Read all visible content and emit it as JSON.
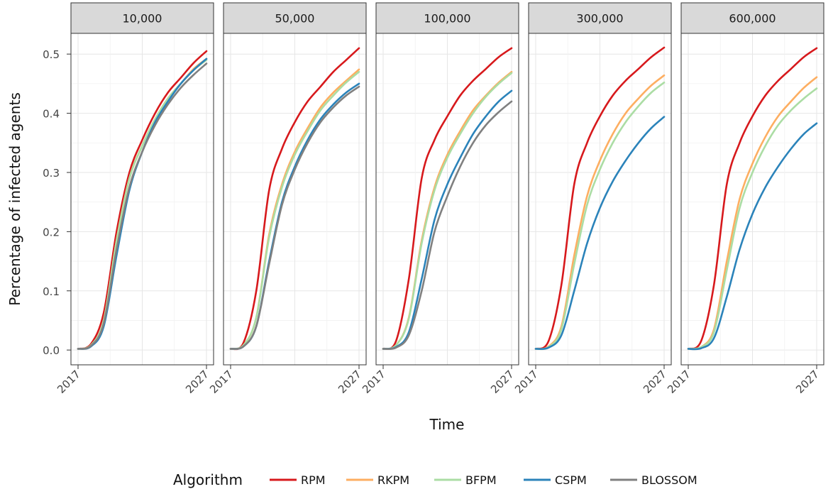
{
  "chart_data": {
    "type": "line",
    "xlabel": "Time",
    "ylabel": "Percentage of infected agents",
    "x_tick_labels": [
      "2017",
      "2027"
    ],
    "xlim": [
      2017,
      2027
    ],
    "y_ticks": [
      0.0,
      0.1,
      0.2,
      0.3,
      0.4,
      0.5
    ],
    "y_tick_labels": [
      "0.0",
      "0.1",
      "0.2",
      "0.3",
      "0.4",
      "0.5"
    ],
    "ylim": [
      -0.025,
      0.535
    ],
    "grid": true,
    "legend": {
      "title": "Algorithm",
      "position": "bottom",
      "entries": [
        {
          "name": "RPM",
          "color": "#d7191c"
        },
        {
          "name": "RKPM",
          "color": "#fdae61"
        },
        {
          "name": "BFPM",
          "color": "#abdda4"
        },
        {
          "name": "CSPM",
          "color": "#2b83ba"
        },
        {
          "name": "BLOSSOM",
          "color": "#808080"
        }
      ]
    },
    "panels": [
      {
        "strip": "10,000",
        "series": [
          {
            "name": "RPM",
            "color": "#d7191c",
            "x": [
              2017,
              2018,
              2019,
              2020,
              2021,
              2022,
              2023,
              2024,
              2025,
              2026,
              2027
            ],
            "y": [
              0.002,
              0.01,
              0.063,
              0.2,
              0.3,
              0.355,
              0.4,
              0.435,
              0.46,
              0.485,
              0.505
            ]
          },
          {
            "name": "RKPM",
            "color": "#fdae61",
            "x": [
              2017,
              2018,
              2019,
              2020,
              2021,
              2022,
              2023,
              2024,
              2025,
              2026,
              2027
            ],
            "y": [
              0.002,
              0.008,
              0.05,
              0.185,
              0.29,
              0.345,
              0.39,
              0.425,
              0.45,
              0.475,
              0.492
            ]
          },
          {
            "name": "BFPM",
            "color": "#abdda4",
            "x": [
              2017,
              2018,
              2019,
              2020,
              2021,
              2022,
              2023,
              2024,
              2025,
              2026,
              2027
            ],
            "y": [
              0.002,
              0.008,
              0.05,
              0.185,
              0.29,
              0.345,
              0.39,
              0.425,
              0.45,
              0.473,
              0.49
            ]
          },
          {
            "name": "CSPM",
            "color": "#2b83ba",
            "x": [
              2017,
              2018,
              2019,
              2020,
              2021,
              2022,
              2023,
              2024,
              2025,
              2026,
              2027
            ],
            "y": [
              0.002,
              0.006,
              0.04,
              0.16,
              0.27,
              0.335,
              0.385,
              0.42,
              0.45,
              0.473,
              0.492
            ]
          },
          {
            "name": "BLOSSOM",
            "color": "#808080",
            "x": [
              2017,
              2018,
              2019,
              2020,
              2021,
              2022,
              2023,
              2024,
              2025,
              2026,
              2027
            ],
            "y": [
              0.002,
              0.007,
              0.045,
              0.17,
              0.275,
              0.335,
              0.38,
              0.415,
              0.443,
              0.465,
              0.484
            ]
          }
        ]
      },
      {
        "strip": "50,000",
        "series": [
          {
            "name": "RPM",
            "color": "#d7191c",
            "x": [
              2017,
              2018,
              2019,
              2020,
              2021,
              2022,
              2023,
              2024,
              2025,
              2026,
              2027
            ],
            "y": [
              0.002,
              0.012,
              0.1,
              0.27,
              0.34,
              0.385,
              0.42,
              0.445,
              0.47,
              0.49,
              0.51
            ]
          },
          {
            "name": "RKPM",
            "color": "#fdae61",
            "x": [
              2017,
              2018,
              2019,
              2020,
              2021,
              2022,
              2023,
              2024,
              2025,
              2026,
              2027
            ],
            "y": [
              0.002,
              0.008,
              0.055,
              0.195,
              0.28,
              0.335,
              0.375,
              0.41,
              0.435,
              0.455,
              0.474
            ]
          },
          {
            "name": "BFPM",
            "color": "#abdda4",
            "x": [
              2017,
              2018,
              2019,
              2020,
              2021,
              2022,
              2023,
              2024,
              2025,
              2026,
              2027
            ],
            "y": [
              0.002,
              0.008,
              0.055,
              0.19,
              0.275,
              0.33,
              0.37,
              0.405,
              0.43,
              0.452,
              0.47
            ]
          },
          {
            "name": "CSPM",
            "color": "#2b83ba",
            "x": [
              2017,
              2018,
              2019,
              2020,
              2021,
              2022,
              2023,
              2024,
              2025,
              2026,
              2027
            ],
            "y": [
              0.002,
              0.006,
              0.04,
              0.15,
              0.25,
              0.31,
              0.355,
              0.39,
              0.415,
              0.435,
              0.45
            ]
          },
          {
            "name": "BLOSSOM",
            "color": "#808080",
            "x": [
              2017,
              2018,
              2019,
              2020,
              2021,
              2022,
              2023,
              2024,
              2025,
              2026,
              2027
            ],
            "y": [
              0.002,
              0.006,
              0.04,
              0.145,
              0.245,
              0.305,
              0.35,
              0.385,
              0.41,
              0.43,
              0.445
            ]
          }
        ]
      },
      {
        "strip": "100,000",
        "series": [
          {
            "name": "RPM",
            "color": "#d7191c",
            "x": [
              2017,
              2018,
              2019,
              2020,
              2021,
              2022,
              2023,
              2024,
              2025,
              2026,
              2027
            ],
            "y": [
              0.002,
              0.015,
              0.12,
              0.29,
              0.355,
              0.395,
              0.43,
              0.455,
              0.475,
              0.495,
              0.51
            ]
          },
          {
            "name": "RKPM",
            "color": "#fdae61",
            "x": [
              2017,
              2018,
              2019,
              2020,
              2021,
              2022,
              2023,
              2024,
              2025,
              2026,
              2027
            ],
            "y": [
              0.002,
              0.008,
              0.055,
              0.185,
              0.275,
              0.33,
              0.37,
              0.405,
              0.43,
              0.452,
              0.47
            ]
          },
          {
            "name": "BFPM",
            "color": "#abdda4",
            "x": [
              2017,
              2018,
              2019,
              2020,
              2021,
              2022,
              2023,
              2024,
              2025,
              2026,
              2027
            ],
            "y": [
              0.002,
              0.008,
              0.053,
              0.18,
              0.27,
              0.325,
              0.365,
              0.4,
              0.428,
              0.45,
              0.468
            ]
          },
          {
            "name": "CSPM",
            "color": "#2b83ba",
            "x": [
              2017,
              2018,
              2019,
              2020,
              2021,
              2022,
              2023,
              2024,
              2025,
              2026,
              2027
            ],
            "y": [
              0.002,
              0.005,
              0.03,
              0.12,
              0.22,
              0.28,
              0.325,
              0.365,
              0.395,
              0.42,
              0.438
            ]
          },
          {
            "name": "BLOSSOM",
            "color": "#808080",
            "x": [
              2017,
              2018,
              2019,
              2020,
              2021,
              2022,
              2023,
              2024,
              2025,
              2026,
              2027
            ],
            "y": [
              0.002,
              0.004,
              0.025,
              0.1,
              0.2,
              0.26,
              0.31,
              0.35,
              0.38,
              0.402,
              0.42
            ]
          }
        ]
      },
      {
        "strip": "300,000",
        "series": [
          {
            "name": "RPM",
            "color": "#d7191c",
            "x": [
              2017,
              2018,
              2019,
              2020,
              2021,
              2022,
              2023,
              2024,
              2025,
              2026,
              2027
            ],
            "y": [
              0.002,
              0.015,
              0.11,
              0.28,
              0.35,
              0.395,
              0.43,
              0.455,
              0.475,
              0.495,
              0.511
            ]
          },
          {
            "name": "RKPM",
            "color": "#fdae61",
            "x": [
              2017,
              2018,
              2019,
              2020,
              2021,
              2022,
              2023,
              2024,
              2025,
              2026,
              2027
            ],
            "y": [
              0.002,
              0.006,
              0.04,
              0.16,
              0.26,
              0.32,
              0.365,
              0.4,
              0.425,
              0.447,
              0.464
            ]
          },
          {
            "name": "BFPM",
            "color": "#abdda4",
            "x": [
              2017,
              2018,
              2019,
              2020,
              2021,
              2022,
              2023,
              2024,
              2025,
              2026,
              2027
            ],
            "y": [
              0.002,
              0.005,
              0.035,
              0.145,
              0.245,
              0.305,
              0.35,
              0.385,
              0.412,
              0.435,
              0.452
            ]
          },
          {
            "name": "CSPM",
            "color": "#2b83ba",
            "x": [
              2017,
              2018,
              2019,
              2020,
              2021,
              2022,
              2023,
              2024,
              2025,
              2026,
              2027
            ],
            "y": [
              0.002,
              0.004,
              0.025,
              0.1,
              0.18,
              0.24,
              0.285,
              0.32,
              0.35,
              0.375,
              0.394
            ]
          }
        ]
      },
      {
        "strip": "600,000",
        "series": [
          {
            "name": "RPM",
            "color": "#d7191c",
            "x": [
              2017,
              2018,
              2019,
              2020,
              2021,
              2022,
              2023,
              2024,
              2025,
              2026,
              2027
            ],
            "y": [
              0.002,
              0.015,
              0.11,
              0.28,
              0.35,
              0.395,
              0.43,
              0.455,
              0.475,
              0.495,
              0.51
            ]
          },
          {
            "name": "RKPM",
            "color": "#fdae61",
            "x": [
              2017,
              2018,
              2019,
              2020,
              2021,
              2022,
              2023,
              2024,
              2025,
              2026,
              2027
            ],
            "y": [
              0.002,
              0.005,
              0.035,
              0.15,
              0.255,
              0.315,
              0.36,
              0.395,
              0.42,
              0.443,
              0.461
            ]
          },
          {
            "name": "BFPM",
            "color": "#abdda4",
            "x": [
              2017,
              2018,
              2019,
              2020,
              2021,
              2022,
              2023,
              2024,
              2025,
              2026,
              2027
            ],
            "y": [
              0.002,
              0.005,
              0.03,
              0.135,
              0.24,
              0.3,
              0.345,
              0.38,
              0.405,
              0.425,
              0.442
            ]
          },
          {
            "name": "CSPM",
            "color": "#2b83ba",
            "x": [
              2017,
              2018,
              2019,
              2020,
              2021,
              2022,
              2023,
              2024,
              2025,
              2026,
              2027
            ],
            "y": [
              0.002,
              0.003,
              0.02,
              0.09,
              0.17,
              0.23,
              0.275,
              0.31,
              0.34,
              0.365,
              0.383
            ]
          }
        ]
      }
    ]
  }
}
